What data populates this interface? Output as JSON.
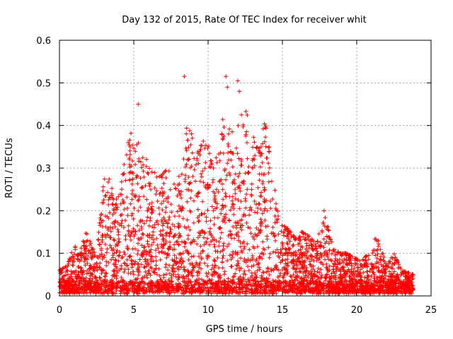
{
  "chart_data": {
    "type": "scatter",
    "title": "Day 132 of 2015, Rate Of TEC Index for receiver whit",
    "xlabel": "GPS time / hours",
    "ylabel": "ROTI / TECUs",
    "xlim": [
      0,
      25
    ],
    "ylim": [
      0,
      0.6
    ],
    "xticks": [
      0,
      5,
      10,
      15,
      20,
      25
    ],
    "yticks": [
      0,
      0.1,
      0.2,
      0.3,
      0.4,
      0.5,
      0.6
    ],
    "xtick_labels": [
      "0",
      "5",
      "10",
      "15",
      "20",
      "25"
    ],
    "ytick_labels": [
      "0",
      "0.1",
      "0.2",
      "0.3",
      "0.4",
      "0.5",
      "0.6"
    ],
    "grid": true,
    "marker": "+",
    "series": [
      {
        "name": "ROTI",
        "color": "#ff0000",
        "x_range": [
          0,
          23.8
        ],
        "note": "dense cloud of points; envelope values (hours, ROTI) listed below",
        "envelope_x": [
          0.0,
          0.5,
          1.0,
          1.3,
          1.8,
          2.5,
          3.0,
          3.3,
          3.8,
          4.3,
          4.7,
          5.0,
          5.3,
          5.7,
          6.2,
          6.8,
          7.3,
          7.8,
          8.3,
          8.6,
          9.0,
          9.4,
          9.8,
          10.3,
          10.8,
          11.1,
          11.4,
          11.8,
          12.2,
          12.6,
          13.0,
          13.4,
          13.8,
          14.3,
          14.8,
          15.3,
          15.8,
          16.3,
          16.8,
          17.3,
          17.8,
          18.3,
          18.8,
          19.3,
          19.8,
          20.3,
          20.8,
          21.3,
          21.6,
          22.0,
          22.5,
          23.0,
          23.8
        ],
        "envelope_y": [
          0.06,
          0.07,
          0.12,
          0.1,
          0.15,
          0.09,
          0.3,
          0.28,
          0.22,
          0.32,
          0.38,
          0.4,
          0.36,
          0.33,
          0.3,
          0.28,
          0.3,
          0.26,
          0.34,
          0.43,
          0.36,
          0.33,
          0.41,
          0.3,
          0.35,
          0.47,
          0.42,
          0.37,
          0.45,
          0.43,
          0.38,
          0.34,
          0.43,
          0.3,
          0.17,
          0.16,
          0.14,
          0.15,
          0.14,
          0.12,
          0.2,
          0.13,
          0.1,
          0.1,
          0.09,
          0.08,
          0.1,
          0.14,
          0.12,
          0.07,
          0.1,
          0.06,
          0.05
        ],
        "outliers": [
          {
            "x": 5.3,
            "y": 0.45
          },
          {
            "x": 8.4,
            "y": 0.515
          },
          {
            "x": 11.2,
            "y": 0.515
          },
          {
            "x": 12.0,
            "y": 0.505
          },
          {
            "x": 12.1,
            "y": 0.48
          },
          {
            "x": 11.3,
            "y": 0.49
          },
          {
            "x": 17.8,
            "y": 0.2
          }
        ]
      }
    ]
  }
}
